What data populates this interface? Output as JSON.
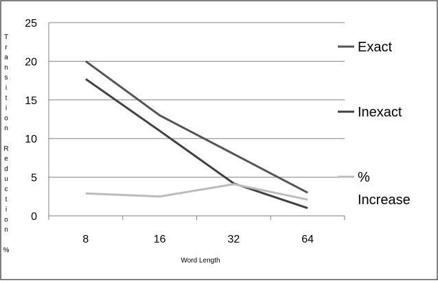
{
  "chart_data": {
    "type": "line",
    "xlabel": "Word Length",
    "ylabel": "Transition Reduction %",
    "categories": [
      "8",
      "16",
      "32",
      "64"
    ],
    "ylim": [
      0,
      25
    ],
    "yticks": [
      "0",
      "5",
      "10",
      "15",
      "20",
      "25"
    ],
    "grid": true,
    "legend_position": "right",
    "series": [
      {
        "name": "Exact",
        "values": [
          20,
          13,
          8,
          3
        ],
        "color": "#555555"
      },
      {
        "name": "Inexact",
        "values": [
          17.7,
          11,
          4.2,
          1
        ],
        "color": "#404040"
      },
      {
        "name": "% Increase",
        "values": [
          2.9,
          2.5,
          4.1,
          2.1
        ],
        "color": "#bbbbbb"
      }
    ]
  }
}
